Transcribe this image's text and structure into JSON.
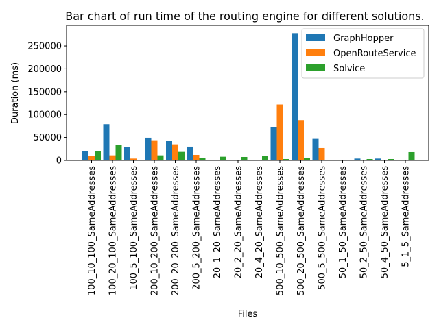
{
  "chart_data": {
    "type": "bar",
    "title": "Bar chart of run time of the routing engine for different solutions.",
    "xlabel": "Files",
    "ylabel": "Duration (ms)",
    "ylim": [
      0,
      295000
    ],
    "yticks": [
      0,
      50000,
      100000,
      150000,
      200000,
      250000
    ],
    "grid": false,
    "legend_position": "top-right",
    "categories": [
      "100_10_100_SameAddresses",
      "100_20_100_SameAddresses",
      "100_5_100_SameAddresses",
      "200_10_200_SameAddresses",
      "200_20_200_SameAddresses",
      "200_5_200_SameAddresses",
      "20_1_20_SameAddresses",
      "20_2_20_SameAddresses",
      "20_4_20_SameAddresses",
      "500_10_500_SameAddresses",
      "500_20_500_SameAddresses",
      "500_5_500_SameAddresses",
      "50_1_50_SameAddresses",
      "50_2_50_SameAddresses",
      "50_4_50_SameAddresses",
      "5_1_5_SameAddresses"
    ],
    "series": [
      {
        "name": "GraphHopper",
        "color": "#1f77b4",
        "values": [
          20000,
          79000,
          29000,
          49500,
          42000,
          30000,
          1000,
          1000,
          1000,
          72000,
          278000,
          47000,
          1000,
          4000,
          4000,
          0
        ]
      },
      {
        "name": "OpenRouteService",
        "color": "#ff7f0e",
        "values": [
          10000,
          11000,
          4000,
          44000,
          35000,
          12000,
          500,
          500,
          500,
          122000,
          88000,
          27000,
          500,
          500,
          500,
          0
        ]
      },
      {
        "name": "Solvice",
        "color": "#2ca02c",
        "values": [
          20000,
          33500,
          1500,
          11000,
          18500,
          6000,
          8000,
          7500,
          9000,
          3000,
          6000,
          1000,
          1000,
          3000,
          3000,
          18000
        ]
      }
    ]
  }
}
